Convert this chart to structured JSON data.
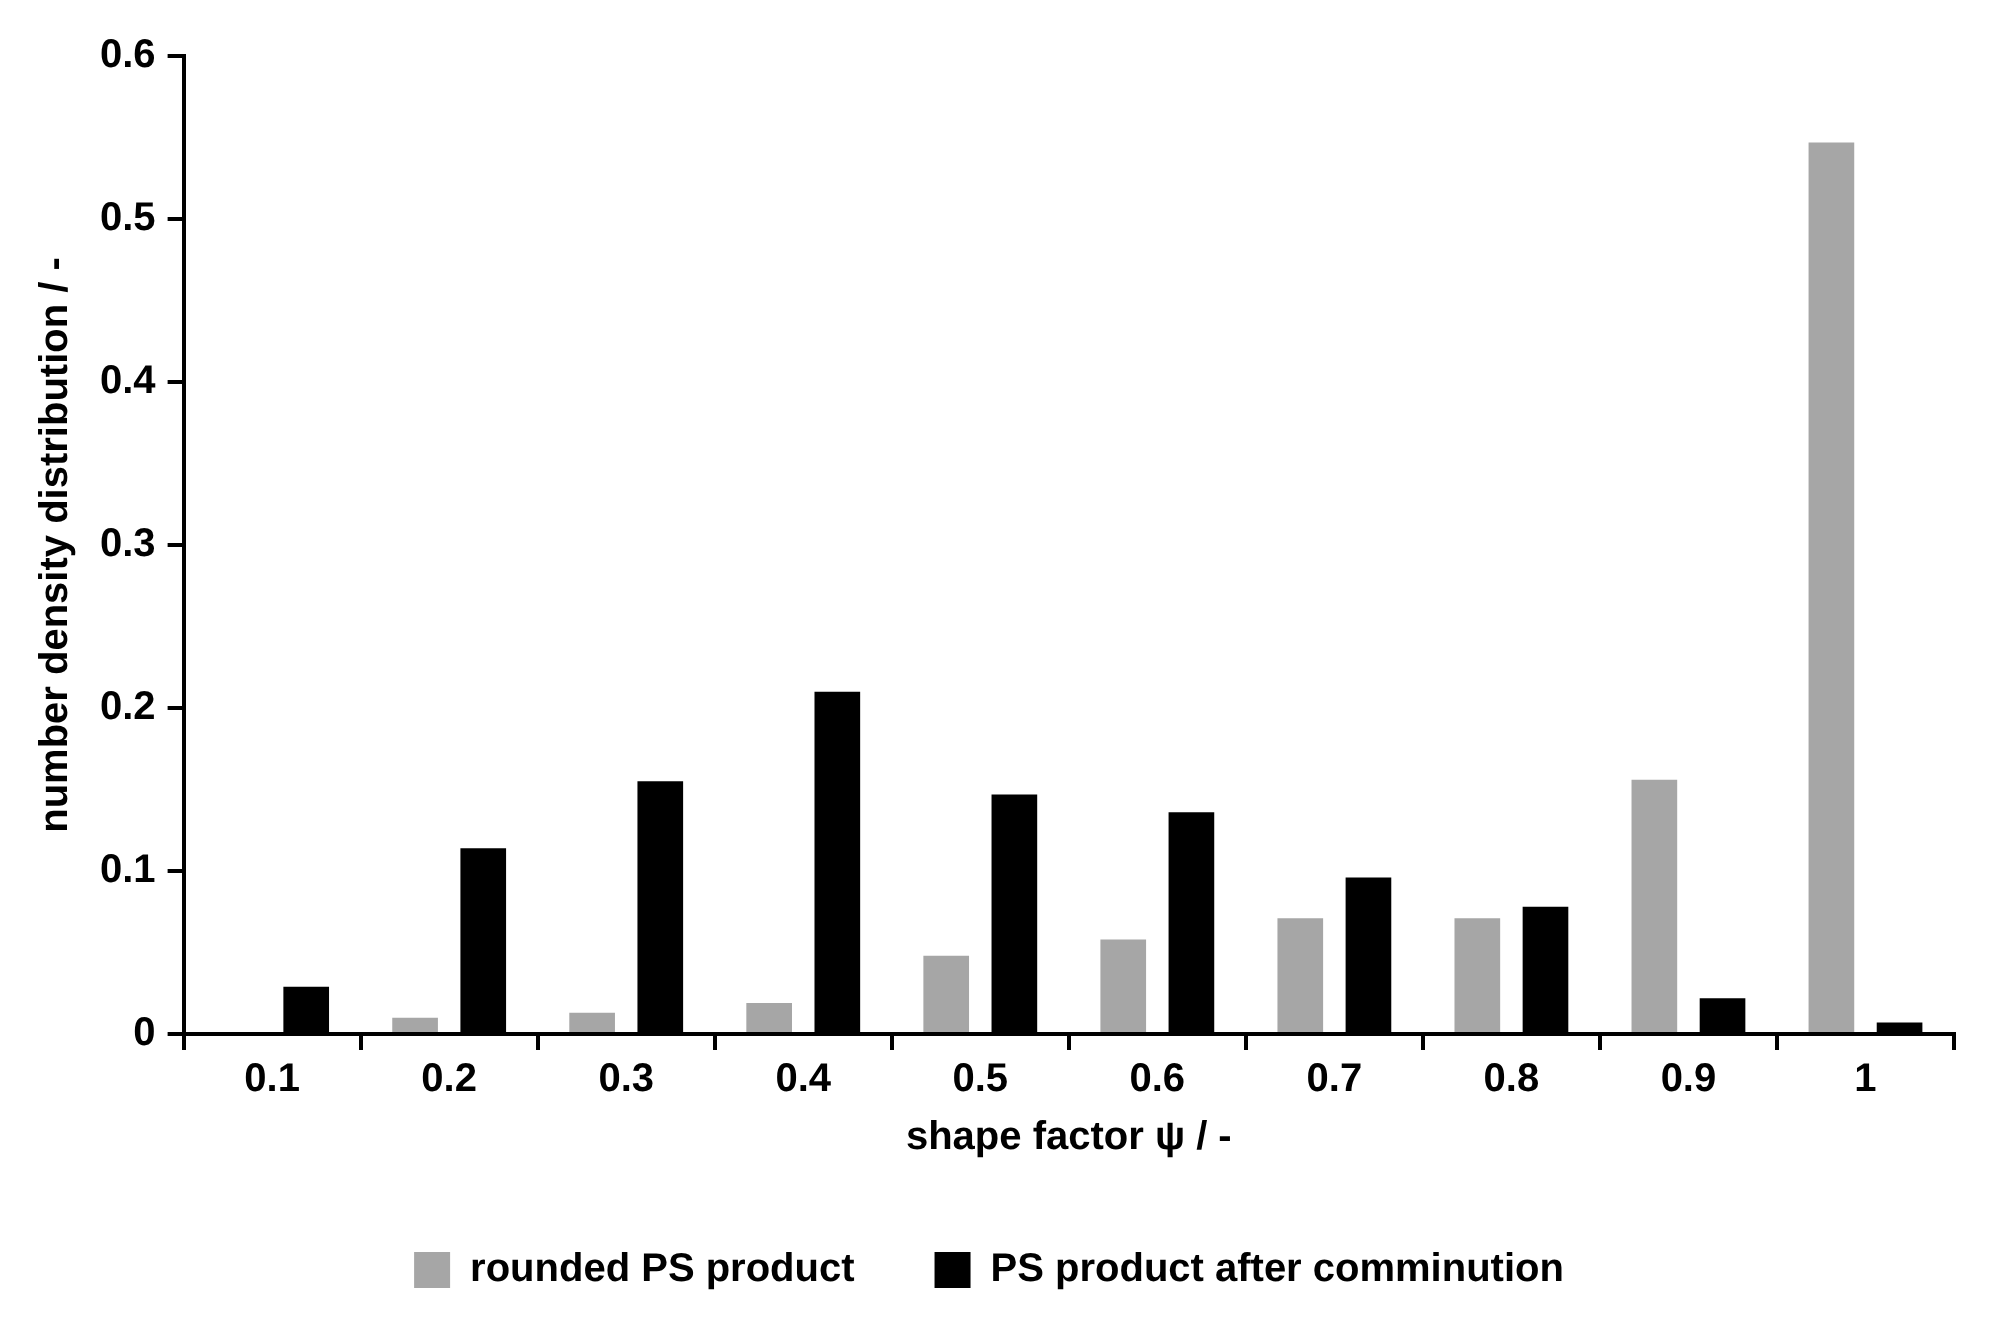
{
  "chart_data": {
    "type": "bar",
    "xlabel": "shape factor ψ / -",
    "ylabel": "number density distribution / -",
    "categories": [
      "0.1",
      "0.2",
      "0.3",
      "0.4",
      "0.5",
      "0.6",
      "0.7",
      "0.8",
      "0.9",
      "1"
    ],
    "series": [
      {
        "name": "rounded PS product",
        "color": "#a6a6a6",
        "values": [
          null,
          0.01,
          0.013,
          0.019,
          0.048,
          0.058,
          0.071,
          0.071,
          0.156,
          0.547
        ]
      },
      {
        "name": "PS product after comminution",
        "color": "#000000",
        "values": [
          0.029,
          0.114,
          0.155,
          0.21,
          0.147,
          0.136,
          0.096,
          0.078,
          0.022,
          0.007
        ]
      }
    ],
    "ylim": [
      0,
      0.6
    ],
    "yticks": [
      0,
      0.1,
      0.2,
      0.3,
      0.4,
      0.5,
      0.6
    ],
    "grid": false,
    "legend": "bottom"
  }
}
